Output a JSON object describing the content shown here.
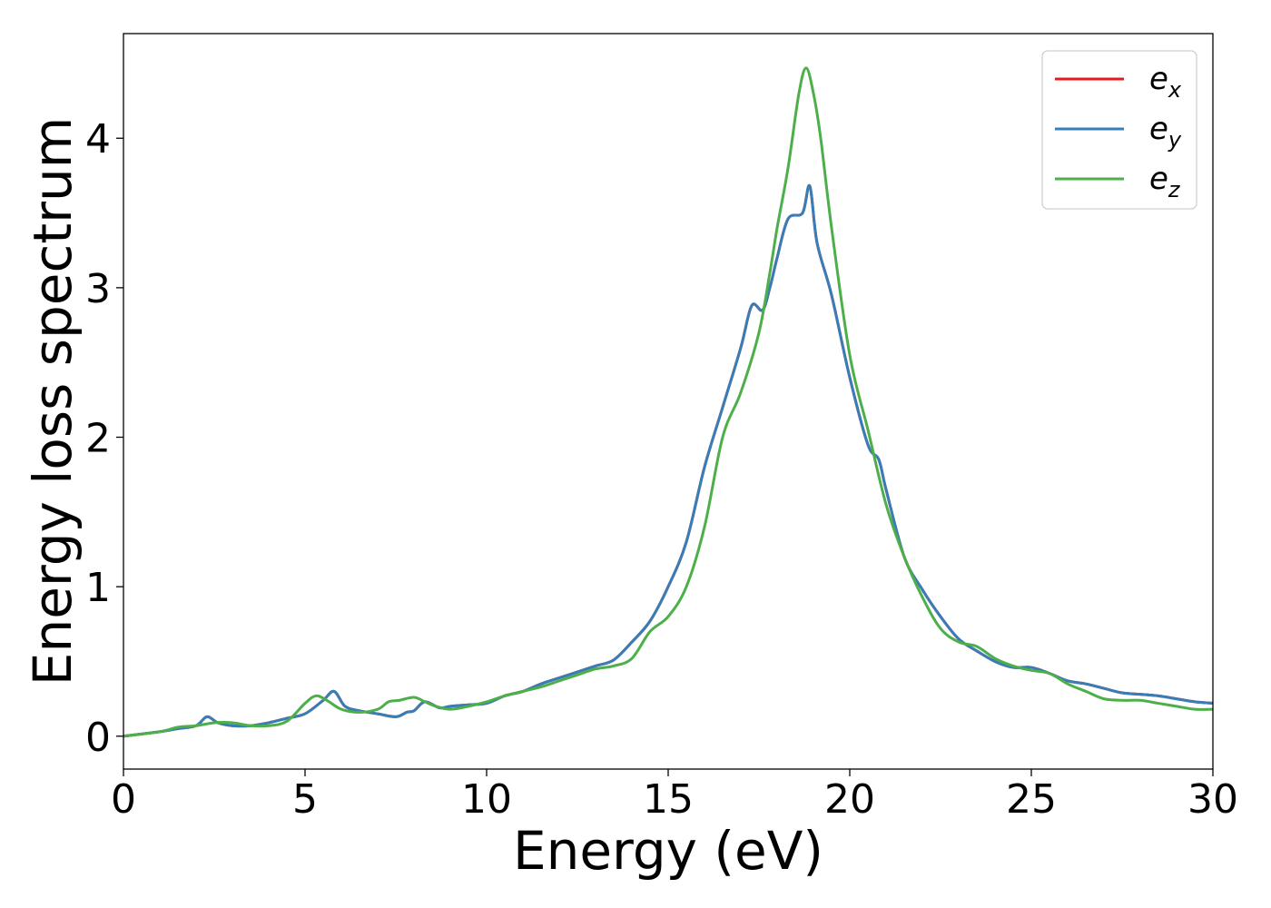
{
  "chart_data": {
    "type": "line",
    "xlabel": "Energy (eV)",
    "ylabel": "Energy loss spectrum",
    "xlim": [
      0,
      30
    ],
    "ylim": [
      -0.22,
      4.7
    ],
    "xticks": [
      0,
      5,
      10,
      15,
      20,
      25,
      30
    ],
    "yticks": [
      0,
      1,
      2,
      3,
      4
    ],
    "xtick_labels": [
      "0",
      "5",
      "10",
      "15",
      "20",
      "25",
      "30"
    ],
    "ytick_labels": [
      "0",
      "1",
      "2",
      "3",
      "4"
    ],
    "grid": false,
    "legend_position": "top-right",
    "series": [
      {
        "name": "e_x",
        "label_base": "e",
        "label_sub": "x",
        "color": "#e41a1c",
        "x": [
          0,
          1,
          1.5,
          2,
          2.3,
          2.6,
          3,
          3.5,
          4,
          4.5,
          5,
          5.5,
          5.8,
          6.1,
          6.5,
          7,
          7.5,
          7.8,
          8,
          8.3,
          8.7,
          9,
          9.5,
          10,
          10.5,
          11,
          11.5,
          12,
          12.5,
          13,
          13.5,
          14,
          14.5,
          15,
          15.5,
          16,
          16.5,
          17,
          17.3,
          17.6,
          17.8,
          18,
          18.3,
          18.7,
          18.9,
          19.1,
          19.5,
          20,
          20.5,
          20.8,
          21,
          21.5,
          22,
          22.5,
          23,
          23.5,
          24,
          24.5,
          25,
          25.5,
          26,
          26.5,
          27,
          27.5,
          28,
          28.5,
          29,
          29.5,
          30
        ],
        "y": [
          0,
          0.03,
          0.05,
          0.07,
          0.13,
          0.09,
          0.07,
          0.07,
          0.09,
          0.12,
          0.15,
          0.24,
          0.3,
          0.2,
          0.17,
          0.15,
          0.13,
          0.16,
          0.17,
          0.23,
          0.19,
          0.2,
          0.21,
          0.22,
          0.27,
          0.3,
          0.35,
          0.39,
          0.43,
          0.47,
          0.51,
          0.63,
          0.77,
          1.0,
          1.3,
          1.8,
          2.2,
          2.6,
          2.88,
          2.85,
          3.0,
          3.2,
          3.46,
          3.5,
          3.68,
          3.3,
          2.95,
          2.4,
          1.95,
          1.85,
          1.65,
          1.2,
          0.98,
          0.8,
          0.65,
          0.57,
          0.5,
          0.46,
          0.46,
          0.42,
          0.37,
          0.35,
          0.32,
          0.29,
          0.28,
          0.27,
          0.25,
          0.23,
          0.22
        ]
      },
      {
        "name": "e_y",
        "label_base": "e",
        "label_sub": "y",
        "color": "#377eb8",
        "x": [
          0,
          1,
          1.5,
          2,
          2.3,
          2.6,
          3,
          3.5,
          4,
          4.5,
          5,
          5.5,
          5.8,
          6.1,
          6.5,
          7,
          7.5,
          7.8,
          8,
          8.3,
          8.7,
          9,
          9.5,
          10,
          10.5,
          11,
          11.5,
          12,
          12.5,
          13,
          13.5,
          14,
          14.5,
          15,
          15.5,
          16,
          16.5,
          17,
          17.3,
          17.6,
          17.8,
          18,
          18.3,
          18.7,
          18.9,
          19.1,
          19.5,
          20,
          20.5,
          20.8,
          21,
          21.5,
          22,
          22.5,
          23,
          23.5,
          24,
          24.5,
          25,
          25.5,
          26,
          26.5,
          27,
          27.5,
          28,
          28.5,
          29,
          29.5,
          30
        ],
        "y": [
          0,
          0.03,
          0.05,
          0.07,
          0.13,
          0.09,
          0.07,
          0.07,
          0.09,
          0.12,
          0.15,
          0.24,
          0.3,
          0.2,
          0.17,
          0.15,
          0.13,
          0.16,
          0.17,
          0.23,
          0.19,
          0.2,
          0.21,
          0.22,
          0.27,
          0.3,
          0.35,
          0.39,
          0.43,
          0.47,
          0.51,
          0.63,
          0.77,
          1.0,
          1.3,
          1.8,
          2.2,
          2.6,
          2.88,
          2.85,
          3.0,
          3.2,
          3.46,
          3.5,
          3.68,
          3.3,
          2.95,
          2.4,
          1.95,
          1.85,
          1.65,
          1.2,
          0.98,
          0.8,
          0.65,
          0.57,
          0.5,
          0.46,
          0.46,
          0.42,
          0.37,
          0.35,
          0.32,
          0.29,
          0.28,
          0.27,
          0.25,
          0.23,
          0.22
        ]
      },
      {
        "name": "e_z",
        "label_base": "e",
        "label_sub": "z",
        "color": "#4daf4a",
        "x": [
          0,
          1,
          1.5,
          2,
          2.5,
          3,
          3.5,
          4,
          4.5,
          5,
          5.3,
          5.6,
          6,
          6.5,
          7,
          7.3,
          7.6,
          8,
          8.3,
          8.6,
          9,
          9.5,
          10,
          10.5,
          11,
          11.5,
          12,
          12.5,
          13,
          13.5,
          14,
          14.5,
          15,
          15.5,
          16,
          16.5,
          17,
          17.5,
          17.8,
          18,
          18.3,
          18.6,
          18.8,
          19,
          19.2,
          19.5,
          20,
          20.5,
          21,
          21.5,
          22,
          22.5,
          23,
          23.5,
          24,
          24.5,
          25,
          25.5,
          26,
          26.5,
          27,
          27.5,
          28,
          28.5,
          29,
          29.5,
          30
        ],
        "y": [
          0,
          0.03,
          0.06,
          0.07,
          0.09,
          0.09,
          0.07,
          0.07,
          0.1,
          0.22,
          0.27,
          0.24,
          0.18,
          0.16,
          0.18,
          0.23,
          0.24,
          0.26,
          0.23,
          0.2,
          0.18,
          0.2,
          0.23,
          0.27,
          0.3,
          0.33,
          0.37,
          0.41,
          0.45,
          0.47,
          0.52,
          0.7,
          0.8,
          1.0,
          1.4,
          2.0,
          2.3,
          2.7,
          3.1,
          3.4,
          3.8,
          4.3,
          4.47,
          4.3,
          4.0,
          3.4,
          2.55,
          2.05,
          1.55,
          1.2,
          0.93,
          0.72,
          0.63,
          0.6,
          0.52,
          0.47,
          0.44,
          0.42,
          0.35,
          0.3,
          0.25,
          0.24,
          0.24,
          0.22,
          0.2,
          0.18,
          0.18
        ]
      }
    ]
  }
}
